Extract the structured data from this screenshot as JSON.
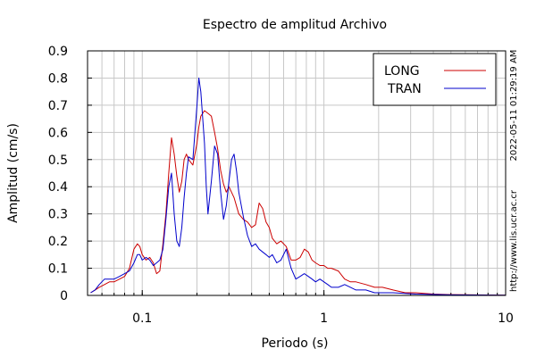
{
  "chart_data": {
    "type": "line",
    "title": "Espectro de amplitud Archivo",
    "xlabel": "Periodo (s)",
    "ylabel": "Amplitud (cm/s)",
    "xscale": "log",
    "xlim": [
      0.05,
      10
    ],
    "ylim": [
      0,
      0.9
    ],
    "x_ticks": [
      {
        "value": 0.1,
        "label": "0.1"
      },
      {
        "value": 1,
        "label": "1"
      },
      {
        "value": 10,
        "label": "10"
      }
    ],
    "y_ticks": [
      {
        "value": 0,
        "label": "0"
      },
      {
        "value": 0.1,
        "label": "0.1"
      },
      {
        "value": 0.2,
        "label": "0.2"
      },
      {
        "value": 0.3,
        "label": "0.3"
      },
      {
        "value": 0.4,
        "label": "0.4"
      },
      {
        "value": 0.5,
        "label": "0.5"
      },
      {
        "value": 0.6,
        "label": "0.6"
      },
      {
        "value": 0.7,
        "label": "0.7"
      },
      {
        "value": 0.8,
        "label": "0.8"
      },
      {
        "value": 0.9,
        "label": "0.9"
      }
    ],
    "grid": true,
    "legend_position": "top-right",
    "timestamp": "2022-05-11 01:29:19 AM",
    "url": "http://www.lis.ucr.ac.cr",
    "series": [
      {
        "name": "LONG",
        "color": "#cc0000",
        "points": [
          [
            0.052,
            0.01
          ],
          [
            0.055,
            0.02
          ],
          [
            0.058,
            0.03
          ],
          [
            0.062,
            0.04
          ],
          [
            0.066,
            0.05
          ],
          [
            0.07,
            0.05
          ],
          [
            0.075,
            0.06
          ],
          [
            0.08,
            0.07
          ],
          [
            0.085,
            0.1
          ],
          [
            0.09,
            0.17
          ],
          [
            0.094,
            0.19
          ],
          [
            0.097,
            0.18
          ],
          [
            0.1,
            0.15
          ],
          [
            0.105,
            0.13
          ],
          [
            0.11,
            0.14
          ],
          [
            0.115,
            0.12
          ],
          [
            0.12,
            0.08
          ],
          [
            0.125,
            0.09
          ],
          [
            0.13,
            0.19
          ],
          [
            0.135,
            0.3
          ],
          [
            0.14,
            0.45
          ],
          [
            0.145,
            0.58
          ],
          [
            0.15,
            0.52
          ],
          [
            0.155,
            0.44
          ],
          [
            0.16,
            0.38
          ],
          [
            0.165,
            0.42
          ],
          [
            0.17,
            0.5
          ],
          [
            0.175,
            0.52
          ],
          [
            0.18,
            0.5
          ],
          [
            0.19,
            0.48
          ],
          [
            0.2,
            0.56
          ],
          [
            0.205,
            0.62
          ],
          [
            0.21,
            0.66
          ],
          [
            0.22,
            0.68
          ],
          [
            0.23,
            0.67
          ],
          [
            0.24,
            0.66
          ],
          [
            0.25,
            0.6
          ],
          [
            0.26,
            0.54
          ],
          [
            0.27,
            0.46
          ],
          [
            0.28,
            0.41
          ],
          [
            0.29,
            0.38
          ],
          [
            0.3,
            0.4
          ],
          [
            0.32,
            0.36
          ],
          [
            0.34,
            0.3
          ],
          [
            0.36,
            0.28
          ],
          [
            0.38,
            0.27
          ],
          [
            0.4,
            0.25
          ],
          [
            0.42,
            0.26
          ],
          [
            0.44,
            0.34
          ],
          [
            0.46,
            0.32
          ],
          [
            0.48,
            0.27
          ],
          [
            0.5,
            0.25
          ],
          [
            0.52,
            0.21
          ],
          [
            0.55,
            0.19
          ],
          [
            0.58,
            0.2
          ],
          [
            0.62,
            0.18
          ],
          [
            0.66,
            0.13
          ],
          [
            0.7,
            0.13
          ],
          [
            0.74,
            0.14
          ],
          [
            0.78,
            0.17
          ],
          [
            0.82,
            0.16
          ],
          [
            0.86,
            0.13
          ],
          [
            0.9,
            0.12
          ],
          [
            0.95,
            0.11
          ],
          [
            1.0,
            0.11
          ],
          [
            1.05,
            0.1
          ],
          [
            1.1,
            0.1
          ],
          [
            1.2,
            0.09
          ],
          [
            1.3,
            0.06
          ],
          [
            1.4,
            0.05
          ],
          [
            1.5,
            0.05
          ],
          [
            1.7,
            0.04
          ],
          [
            1.9,
            0.03
          ],
          [
            2.1,
            0.03
          ],
          [
            2.4,
            0.02
          ],
          [
            2.8,
            0.01
          ],
          [
            3.2,
            0.01
          ],
          [
            4.0,
            0.005
          ],
          [
            5.0,
            0.003
          ],
          [
            7.0,
            0.002
          ],
          [
            10.0,
            0.001
          ]
        ]
      },
      {
        "name": "TRAN",
        "color": "#0000cc",
        "points": [
          [
            0.052,
            0.01
          ],
          [
            0.055,
            0.02
          ],
          [
            0.058,
            0.04
          ],
          [
            0.062,
            0.06
          ],
          [
            0.066,
            0.06
          ],
          [
            0.07,
            0.06
          ],
          [
            0.075,
            0.07
          ],
          [
            0.08,
            0.08
          ],
          [
            0.085,
            0.09
          ],
          [
            0.09,
            0.12
          ],
          [
            0.094,
            0.15
          ],
          [
            0.097,
            0.15
          ],
          [
            0.1,
            0.13
          ],
          [
            0.105,
            0.14
          ],
          [
            0.11,
            0.13
          ],
          [
            0.115,
            0.11
          ],
          [
            0.12,
            0.12
          ],
          [
            0.125,
            0.13
          ],
          [
            0.13,
            0.17
          ],
          [
            0.135,
            0.28
          ],
          [
            0.14,
            0.4
          ],
          [
            0.145,
            0.45
          ],
          [
            0.15,
            0.3
          ],
          [
            0.155,
            0.2
          ],
          [
            0.16,
            0.18
          ],
          [
            0.165,
            0.25
          ],
          [
            0.17,
            0.36
          ],
          [
            0.175,
            0.45
          ],
          [
            0.18,
            0.51
          ],
          [
            0.19,
            0.5
          ],
          [
            0.2,
            0.7
          ],
          [
            0.205,
            0.8
          ],
          [
            0.21,
            0.75
          ],
          [
            0.22,
            0.56
          ],
          [
            0.225,
            0.4
          ],
          [
            0.23,
            0.3
          ],
          [
            0.24,
            0.42
          ],
          [
            0.25,
            0.55
          ],
          [
            0.26,
            0.52
          ],
          [
            0.27,
            0.38
          ],
          [
            0.28,
            0.28
          ],
          [
            0.29,
            0.33
          ],
          [
            0.3,
            0.42
          ],
          [
            0.31,
            0.5
          ],
          [
            0.32,
            0.52
          ],
          [
            0.33,
            0.46
          ],
          [
            0.34,
            0.38
          ],
          [
            0.36,
            0.29
          ],
          [
            0.38,
            0.22
          ],
          [
            0.4,
            0.18
          ],
          [
            0.42,
            0.19
          ],
          [
            0.44,
            0.17
          ],
          [
            0.46,
            0.16
          ],
          [
            0.48,
            0.15
          ],
          [
            0.5,
            0.14
          ],
          [
            0.52,
            0.15
          ],
          [
            0.55,
            0.12
          ],
          [
            0.58,
            0.13
          ],
          [
            0.62,
            0.17
          ],
          [
            0.66,
            0.1
          ],
          [
            0.7,
            0.06
          ],
          [
            0.74,
            0.07
          ],
          [
            0.78,
            0.08
          ],
          [
            0.82,
            0.07
          ],
          [
            0.86,
            0.06
          ],
          [
            0.9,
            0.05
          ],
          [
            0.95,
            0.06
          ],
          [
            1.0,
            0.05
          ],
          [
            1.05,
            0.04
          ],
          [
            1.1,
            0.03
          ],
          [
            1.2,
            0.03
          ],
          [
            1.3,
            0.04
          ],
          [
            1.4,
            0.03
          ],
          [
            1.5,
            0.02
          ],
          [
            1.7,
            0.02
          ],
          [
            1.9,
            0.01
          ],
          [
            2.4,
            0.01
          ],
          [
            3.2,
            0.005
          ],
          [
            5.0,
            0.002
          ],
          [
            10.0,
            0.001
          ]
        ]
      }
    ]
  }
}
